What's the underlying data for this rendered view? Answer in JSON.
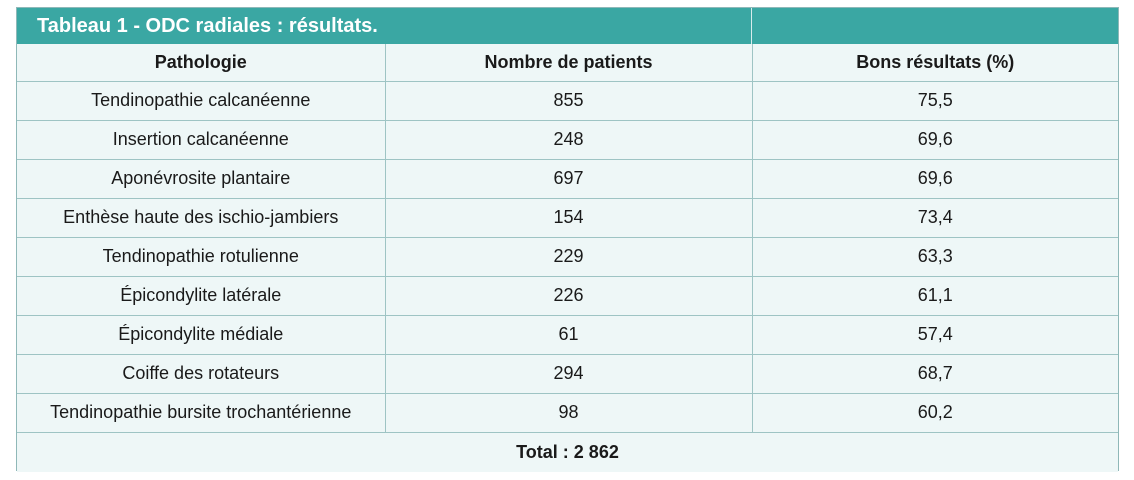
{
  "table": {
    "title": "Tableau 1 - ODC radiales : résultats.",
    "headers": [
      "Pathologie",
      "Nombre de patients",
      "Bons résultats (%)"
    ],
    "rows": [
      [
        "Tendinopathie calcanéenne",
        "855",
        "75,5"
      ],
      [
        "Insertion calcanéenne",
        "248",
        "69,6"
      ],
      [
        "Aponévrosite plantaire",
        "697",
        "69,6"
      ],
      [
        "Enthèse haute des ischio-jambiers",
        "154",
        "73,4"
      ],
      [
        "Tendinopathie rotulienne",
        "229",
        "63,3"
      ],
      [
        "Épicondylite latérale",
        "226",
        "61,1"
      ],
      [
        "Épicondylite médiale",
        "61",
        "57,4"
      ],
      [
        "Coiffe des rotateurs",
        "294",
        "68,7"
      ],
      [
        "Tendinopathie bursite trochantérienne",
        "98",
        "60,2"
      ]
    ],
    "total": "Total : 2 862"
  },
  "colors": {
    "title_bg": "#3aa7a3",
    "cell_bg": "#eef7f7",
    "border": "#9ec4c4"
  }
}
